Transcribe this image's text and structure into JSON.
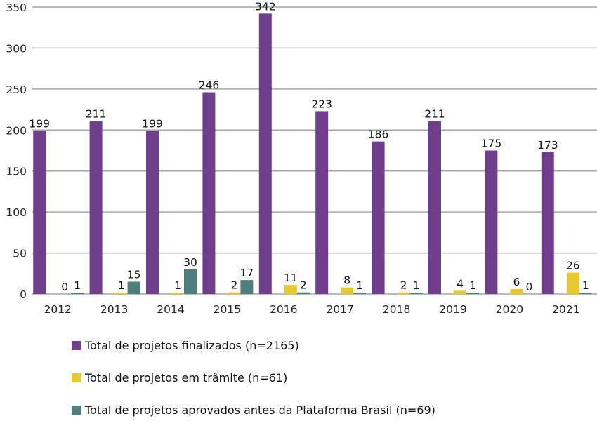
{
  "chart_data": {
    "type": "bar",
    "title": "",
    "xlabel": "",
    "ylabel": "",
    "ylim": [
      0,
      350
    ],
    "yticks": [
      0,
      50,
      100,
      150,
      200,
      250,
      300,
      350
    ],
    "grid": true,
    "legend_position": "bottom",
    "categories": [
      "2012",
      "2013",
      "2014",
      "2015",
      "2016",
      "2017",
      "2018",
      "2019",
      "2020",
      "2021"
    ],
    "series": [
      {
        "name": "Total de projetos finalizados (n=2165)",
        "color": "#6f3f8c",
        "values": [
          199,
          211,
          199,
          246,
          342,
          223,
          186,
          211,
          175,
          173
        ]
      },
      {
        "name": "Total de projetos em trâmite (n=61)",
        "color": "#e5c832",
        "values": [
          0,
          1,
          1,
          2,
          11,
          8,
          2,
          4,
          6,
          26
        ]
      },
      {
        "name": "Total de projetos aprovados antes da Plataforma Brasil (n=69)",
        "color": "#4e7f7c",
        "values": [
          1,
          15,
          30,
          17,
          2,
          1,
          1,
          1,
          0,
          1
        ]
      }
    ]
  }
}
